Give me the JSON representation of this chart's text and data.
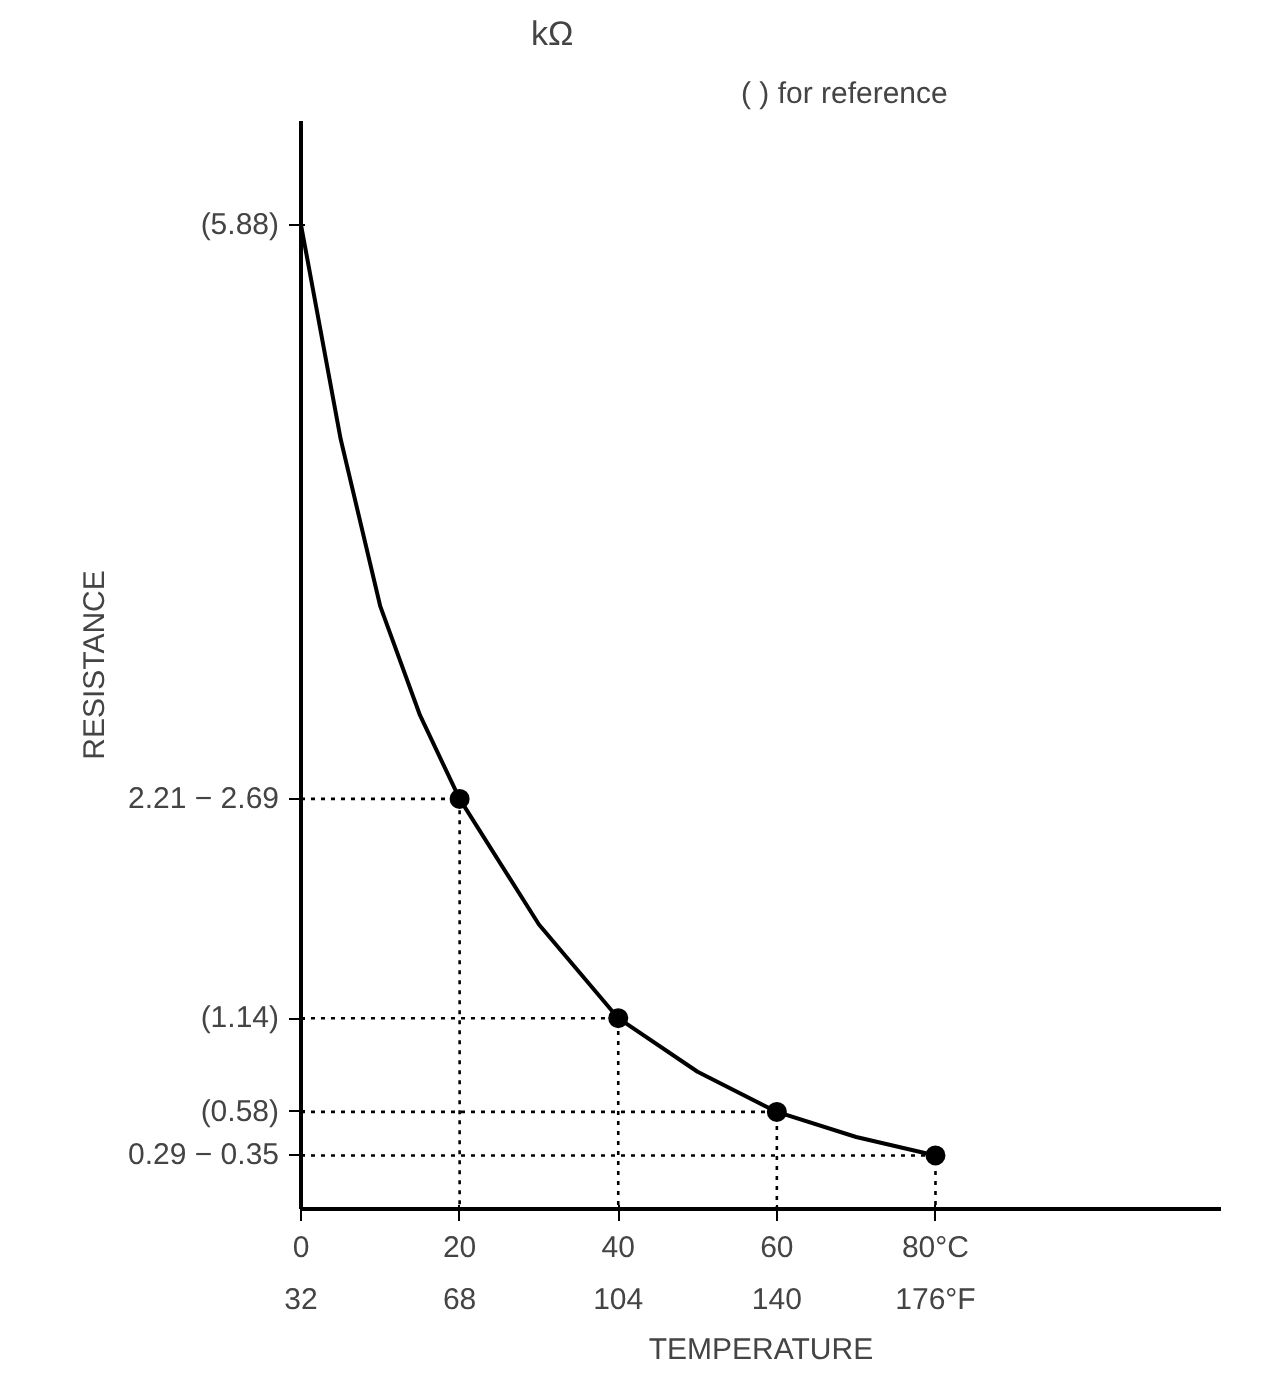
{
  "chart_data": {
    "type": "line",
    "xlabel": "TEMPERATURE",
    "ylabel": "RESISTANCE",
    "annotations": [
      "(   ) for reference",
      "kΩ"
    ],
    "xlim": [
      0,
      116
    ],
    "ylim": [
      0,
      6.5
    ],
    "xticks": [
      0,
      20,
      40,
      60,
      {
        "value": 80,
        "label": "80°C"
      }
    ],
    "x2lim": [
      32,
      240.8
    ],
    "x2ticks": [
      32,
      68,
      104,
      140,
      {
        "value": 176,
        "label": "176°F"
      }
    ],
    "yticks": [
      {
        "value": 5.88,
        "label": "(5.88)"
      },
      {
        "value": 2.45,
        "label": "2.21 − 2.69"
      },
      {
        "value": 1.14,
        "label": "(1.14)"
      },
      {
        "value": 0.58,
        "label": "(0.58)"
      },
      {
        "value": 0.32,
        "label": "0.29 − 0.35"
      }
    ],
    "grid": false,
    "series": [
      {
        "color": "#000000",
        "marker": "none",
        "line_style": "solid",
        "x": [
          0,
          5,
          10,
          15,
          20,
          30,
          40,
          50,
          60,
          70,
          80
        ],
        "values": [
          5.88,
          4.6,
          3.6,
          2.95,
          2.45,
          1.7,
          1.14,
          0.82,
          0.58,
          0.43,
          0.32
        ]
      },
      {
        "type": "scatter",
        "color": "#000000",
        "marker": "circle",
        "x": [
          20,
          40,
          60,
          80
        ],
        "values": [
          2.45,
          1.14,
          0.58,
          0.32
        ]
      },
      {
        "color": "#000000",
        "marker": "none",
        "line_style": "dotted",
        "x": [
          0,
          20,
          20
        ],
        "values": [
          2.45,
          2.45,
          0
        ]
      },
      {
        "color": "#000000",
        "marker": "none",
        "line_style": "dotted",
        "x": [
          0,
          40,
          40
        ],
        "values": [
          1.14,
          1.14,
          0
        ]
      },
      {
        "color": "#000000",
        "marker": "none",
        "line_style": "dotted",
        "x": [
          0,
          60,
          60
        ],
        "values": [
          0.58,
          0.58,
          0
        ]
      },
      {
        "color": "#000000",
        "marker": "none",
        "line_style": "dotted",
        "x": [
          0,
          80,
          80
        ],
        "values": [
          0.32,
          0.32,
          0
        ]
      }
    ]
  }
}
